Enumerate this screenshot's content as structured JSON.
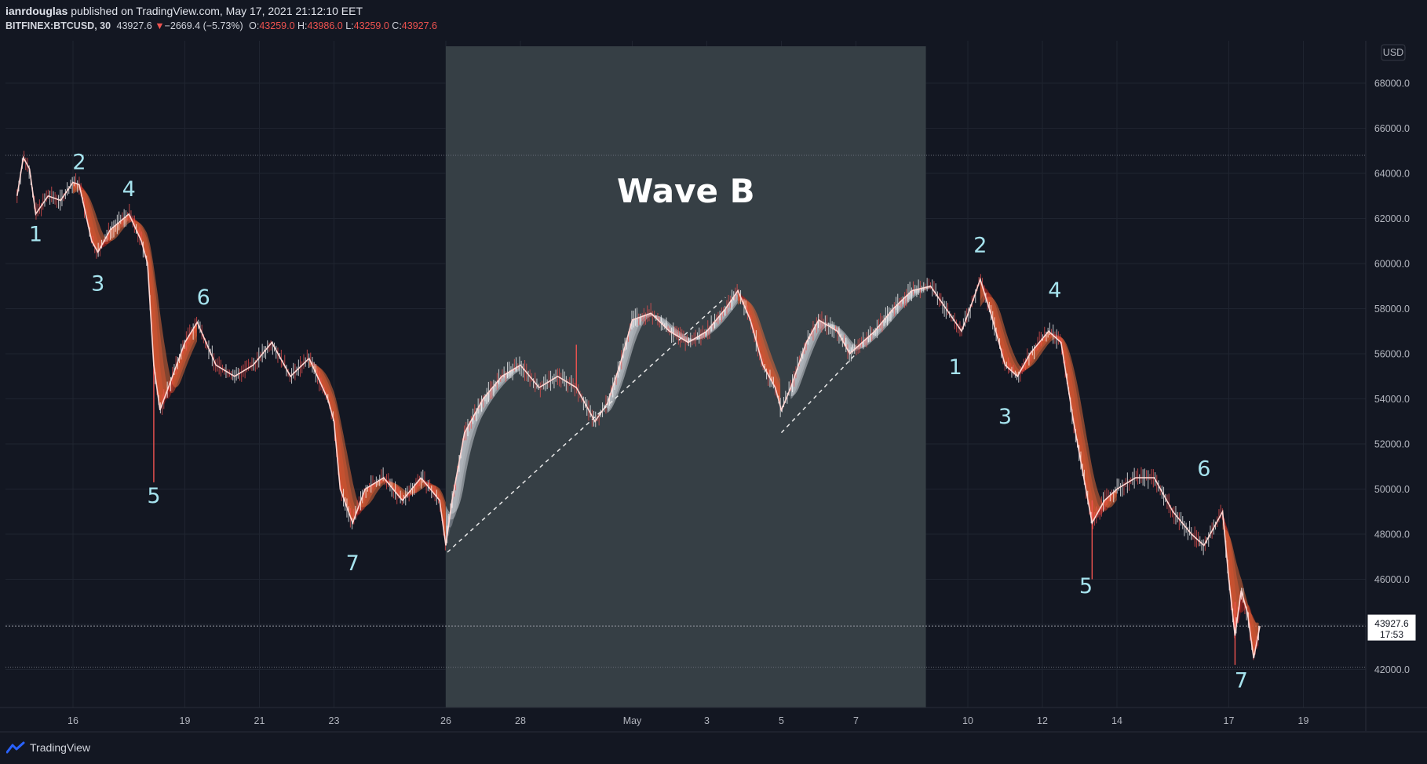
{
  "header": {
    "user": "ianrdouglas",
    "published_text": "published on TradingView.com, May 17, 2021 21:12:10 EET",
    "symbol": "BITFINEX:BTCUSD, 30",
    "last": "43927.6",
    "change": "−2669.4 (−5.73%)",
    "o_label": "O:",
    "o_value": "43259.0",
    "h_label": "H:",
    "h_value": "43986.0",
    "l_label": "L:",
    "l_value": "43259.0",
    "c_label": "C:",
    "c_value": "43927.6"
  },
  "footer": {
    "brand": "TradingView",
    "logo_icon": "tradingview-logo-icon"
  },
  "colors": {
    "background": "#131722",
    "highlight": "#363f45",
    "bear": "#ef5350",
    "bull_ribbon": "#b8bcc4",
    "wave_label": "#a6e3ee"
  },
  "chart_data": {
    "type": "line",
    "title": "",
    "currency": "USD",
    "xlabel": "",
    "ylabel": "",
    "ylim": [
      40000,
      69000
    ],
    "xlim": [
      "2021-04-14T12:00",
      "2021-05-20T00:00"
    ],
    "grid": true,
    "y_ticks": [
      "42000.0",
      "44000.0",
      "46000.0",
      "48000.0",
      "50000.0",
      "52000.0",
      "54000.0",
      "56000.0",
      "58000.0",
      "60000.0",
      "62000.0",
      "64000.0",
      "66000.0",
      "68000.0"
    ],
    "y_tick_values": [
      42000,
      44000,
      46000,
      48000,
      50000,
      52000,
      54000,
      56000,
      58000,
      60000,
      62000,
      64000,
      66000,
      68000
    ],
    "x_ticks": [
      {
        "label": "16",
        "date": "2021-04-16"
      },
      {
        "label": "19",
        "date": "2021-04-19"
      },
      {
        "label": "21",
        "date": "2021-04-21"
      },
      {
        "label": "23",
        "date": "2021-04-23"
      },
      {
        "label": "26",
        "date": "2021-04-26"
      },
      {
        "label": "28",
        "date": "2021-04-28"
      },
      {
        "label": "May",
        "date": "2021-05-01"
      },
      {
        "label": "3",
        "date": "2021-05-03"
      },
      {
        "label": "5",
        "date": "2021-05-05"
      },
      {
        "label": "7",
        "date": "2021-05-07"
      },
      {
        "label": "10",
        "date": "2021-05-10"
      },
      {
        "label": "12",
        "date": "2021-05-12"
      },
      {
        "label": "14",
        "date": "2021-05-14"
      },
      {
        "label": "17",
        "date": "2021-05-17"
      },
      {
        "label": "19",
        "date": "2021-05-19"
      }
    ],
    "last_price": {
      "value": 43927.6,
      "label": "43927.6",
      "countdown": "17:53"
    },
    "horizontal_levels": [
      64800,
      42100
    ],
    "highlight_region": {
      "label": "Wave B",
      "from": "2021-04-26",
      "to": "2021-05-08T21:00"
    },
    "series": [
      {
        "name": "",
        "points": [
          {
            "x": "2021-04-14T12:00",
            "y": 63000
          },
          {
            "x": "2021-04-14T16:00",
            "y": 64700
          },
          {
            "x": "2021-04-14T20:00",
            "y": 64200
          },
          {
            "x": "2021-04-15T00:00",
            "y": 62200
          },
          {
            "x": "2021-04-15T08:00",
            "y": 63000
          },
          {
            "x": "2021-04-15T16:00",
            "y": 62800
          },
          {
            "x": "2021-04-16T00:00",
            "y": 63600
          },
          {
            "x": "2021-04-16T04:00",
            "y": 63500
          },
          {
            "x": "2021-04-16T12:00",
            "y": 61000
          },
          {
            "x": "2021-04-16T16:00",
            "y": 60500
          },
          {
            "x": "2021-04-17T00:00",
            "y": 61500
          },
          {
            "x": "2021-04-17T12:00",
            "y": 62200
          },
          {
            "x": "2021-04-17T20:00",
            "y": 61000
          },
          {
            "x": "2021-04-18T00:00",
            "y": 60000
          },
          {
            "x": "2021-04-18T04:00",
            "y": 55500
          },
          {
            "x": "2021-04-18T08:00",
            "y": 53500
          },
          {
            "x": "2021-04-18T16:00",
            "y": 55000
          },
          {
            "x": "2021-04-19T00:00",
            "y": 56500
          },
          {
            "x": "2021-04-19T08:00",
            "y": 57400
          },
          {
            "x": "2021-04-19T20:00",
            "y": 55500
          },
          {
            "x": "2021-04-20T08:00",
            "y": 55000
          },
          {
            "x": "2021-04-20T20:00",
            "y": 55500
          },
          {
            "x": "2021-04-21T08:00",
            "y": 56500
          },
          {
            "x": "2021-04-21T20:00",
            "y": 55000
          },
          {
            "x": "2021-04-22T08:00",
            "y": 55800
          },
          {
            "x": "2021-04-22T20:00",
            "y": 54000
          },
          {
            "x": "2021-04-23T00:00",
            "y": 53000
          },
          {
            "x": "2021-04-23T04:00",
            "y": 50000
          },
          {
            "x": "2021-04-23T12:00",
            "y": 48500
          },
          {
            "x": "2021-04-23T20:00",
            "y": 50000
          },
          {
            "x": "2021-04-24T08:00",
            "y": 50500
          },
          {
            "x": "2021-04-24T20:00",
            "y": 49500
          },
          {
            "x": "2021-04-25T08:00",
            "y": 50500
          },
          {
            "x": "2021-04-25T20:00",
            "y": 49500
          },
          {
            "x": "2021-04-26T00:00",
            "y": 47500
          },
          {
            "x": "2021-04-26T04:00",
            "y": 49500
          },
          {
            "x": "2021-04-26T12:00",
            "y": 52500
          },
          {
            "x": "2021-04-27T00:00",
            "y": 54000
          },
          {
            "x": "2021-04-27T12:00",
            "y": 55000
          },
          {
            "x": "2021-04-28T00:00",
            "y": 55500
          },
          {
            "x": "2021-04-28T12:00",
            "y": 54500
          },
          {
            "x": "2021-04-29T00:00",
            "y": 55000
          },
          {
            "x": "2021-04-29T12:00",
            "y": 54500
          },
          {
            "x": "2021-04-30T00:00",
            "y": 53000
          },
          {
            "x": "2021-04-30T08:00",
            "y": 53800
          },
          {
            "x": "2021-04-30T16:00",
            "y": 55500
          },
          {
            "x": "2021-05-01T00:00",
            "y": 57500
          },
          {
            "x": "2021-05-01T12:00",
            "y": 57800
          },
          {
            "x": "2021-05-02T00:00",
            "y": 57000
          },
          {
            "x": "2021-05-02T12:00",
            "y": 56500
          },
          {
            "x": "2021-05-03T00:00",
            "y": 57000
          },
          {
            "x": "2021-05-03T12:00",
            "y": 58000
          },
          {
            "x": "2021-05-03T20:00",
            "y": 58800
          },
          {
            "x": "2021-05-04T04:00",
            "y": 57500
          },
          {
            "x": "2021-05-04T12:00",
            "y": 55500
          },
          {
            "x": "2021-05-04T20:00",
            "y": 54500
          },
          {
            "x": "2021-05-05T00:00",
            "y": 53500
          },
          {
            "x": "2021-05-05T06:00",
            "y": 54500
          },
          {
            "x": "2021-05-05T16:00",
            "y": 56500
          },
          {
            "x": "2021-05-06T00:00",
            "y": 57500
          },
          {
            "x": "2021-05-06T12:00",
            "y": 57000
          },
          {
            "x": "2021-05-06T20:00",
            "y": 56000
          },
          {
            "x": "2021-05-07T04:00",
            "y": 56500
          },
          {
            "x": "2021-05-07T12:00",
            "y": 57000
          },
          {
            "x": "2021-05-08T00:00",
            "y": 58000
          },
          {
            "x": "2021-05-08T12:00",
            "y": 58800
          },
          {
            "x": "2021-05-09T00:00",
            "y": 59000
          },
          {
            "x": "2021-05-09T12:00",
            "y": 57800
          },
          {
            "x": "2021-05-09T20:00",
            "y": 57000
          },
          {
            "x": "2021-05-10T04:00",
            "y": 58500
          },
          {
            "x": "2021-05-10T08:00",
            "y": 59300
          },
          {
            "x": "2021-05-10T16:00",
            "y": 57500
          },
          {
            "x": "2021-05-11T00:00",
            "y": 55500
          },
          {
            "x": "2021-05-11T08:00",
            "y": 55000
          },
          {
            "x": "2021-05-11T16:00",
            "y": 56000
          },
          {
            "x": "2021-05-12T04:00",
            "y": 57000
          },
          {
            "x": "2021-05-12T12:00",
            "y": 56500
          },
          {
            "x": "2021-05-12T20:00",
            "y": 53000
          },
          {
            "x": "2021-05-13T04:00",
            "y": 50000
          },
          {
            "x": "2021-05-13T08:00",
            "y": 48500
          },
          {
            "x": "2021-05-13T16:00",
            "y": 49500
          },
          {
            "x": "2021-05-14T00:00",
            "y": 50000
          },
          {
            "x": "2021-05-14T12:00",
            "y": 50500
          },
          {
            "x": "2021-05-15T00:00",
            "y": 50500
          },
          {
            "x": "2021-05-15T12:00",
            "y": 49000
          },
          {
            "x": "2021-05-16T00:00",
            "y": 48000
          },
          {
            "x": "2021-05-16T08:00",
            "y": 47500
          },
          {
            "x": "2021-05-16T16:00",
            "y": 48500
          },
          {
            "x": "2021-05-16T20:00",
            "y": 49000
          },
          {
            "x": "2021-05-17T00:00",
            "y": 46000
          },
          {
            "x": "2021-05-17T04:00",
            "y": 43500
          },
          {
            "x": "2021-05-17T08:00",
            "y": 45500
          },
          {
            "x": "2021-05-17T12:00",
            "y": 44500
          },
          {
            "x": "2021-05-17T16:00",
            "y": 42500
          },
          {
            "x": "2021-05-17T20:00",
            "y": 43927.6
          }
        ]
      }
    ],
    "ribbon_segments": [
      {
        "kind": "bear",
        "from": "2021-04-16T00:00",
        "to": "2021-04-19T08:00"
      },
      {
        "kind": "bear",
        "from": "2021-04-22T08:00",
        "to": "2021-04-26T00:00"
      },
      {
        "kind": "bull",
        "from": "2021-04-26T00:00",
        "to": "2021-04-28T00:00"
      },
      {
        "kind": "bull",
        "from": "2021-04-30T08:00",
        "to": "2021-05-03T20:00"
      },
      {
        "kind": "bear",
        "from": "2021-05-03T20:00",
        "to": "2021-05-05T00:00"
      },
      {
        "kind": "bull",
        "from": "2021-05-05T06:00",
        "to": "2021-05-09T00:00"
      },
      {
        "kind": "bear",
        "from": "2021-05-10T08:00",
        "to": "2021-05-14T00:00"
      },
      {
        "kind": "bear",
        "from": "2021-05-16T20:00",
        "to": "2021-05-17T20:00"
      }
    ],
    "dashed_lines": [
      {
        "from": {
          "x": "2021-04-26T01:00",
          "y": 47200
        },
        "to": {
          "x": "2021-05-03T12:00",
          "y": 58500
        }
      },
      {
        "from": {
          "x": "2021-05-05T00:00",
          "y": 52500
        },
        "to": {
          "x": "2021-05-07T00:00",
          "y": 56000
        }
      }
    ],
    "annotations": [
      {
        "text": "1",
        "x": "2021-04-15T00:00",
        "y": 61000
      },
      {
        "text": "2",
        "x": "2021-04-16T04:00",
        "y": 64200
      },
      {
        "text": "3",
        "x": "2021-04-16T16:00",
        "y": 58800
      },
      {
        "text": "4",
        "x": "2021-04-17T12:00",
        "y": 63000
      },
      {
        "text": "5",
        "x": "2021-04-18T04:00",
        "y": 49400
      },
      {
        "text": "6",
        "x": "2021-04-19T12:00",
        "y": 58200
      },
      {
        "text": "7",
        "x": "2021-04-23T12:00",
        "y": 46400
      },
      {
        "text": "1",
        "x": "2021-05-09T16:00",
        "y": 55100
      },
      {
        "text": "2",
        "x": "2021-05-10T08:00",
        "y": 60500
      },
      {
        "text": "3",
        "x": "2021-05-11T00:00",
        "y": 52900
      },
      {
        "text": "4",
        "x": "2021-05-12T08:00",
        "y": 58500
      },
      {
        "text": "5",
        "x": "2021-05-13T04:00",
        "y": 45400
      },
      {
        "text": "6",
        "x": "2021-05-16T08:00",
        "y": 50600
      },
      {
        "text": "7",
        "x": "2021-05-17T08:00",
        "y": 41200
      }
    ]
  }
}
